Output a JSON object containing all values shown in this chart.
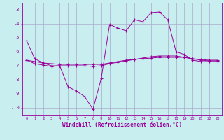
{
  "xlabel": "Windchill (Refroidissement éolien,°C)",
  "bg_color": "#c8eef0",
  "grid_color": "#aaaacc",
  "line_color": "#990099",
  "hours": [
    0,
    1,
    2,
    3,
    4,
    5,
    6,
    7,
    8,
    9,
    10,
    11,
    12,
    13,
    14,
    15,
    16,
    17,
    18,
    19,
    20,
    21,
    22,
    23
  ],
  "line1": [
    -5.2,
    -6.5,
    -6.8,
    -7.0,
    -7.0,
    -8.5,
    -8.8,
    -9.2,
    -10.1,
    -7.9,
    -4.05,
    -4.3,
    -4.5,
    -3.7,
    -3.85,
    -3.2,
    -3.15,
    -3.7,
    -6.0,
    -6.2,
    -6.6,
    -6.7,
    -6.7,
    -6.7
  ],
  "line2": [
    -6.6,
    -6.85,
    -6.95,
    -7.05,
    -7.0,
    -7.0,
    -7.0,
    -7.0,
    -7.05,
    -7.0,
    -6.85,
    -6.75,
    -6.65,
    -6.55,
    -6.45,
    -6.35,
    -6.3,
    -6.3,
    -6.3,
    -6.4,
    -6.5,
    -6.6,
    -6.65,
    -6.65
  ],
  "line3": [
    -6.6,
    -6.7,
    -6.8,
    -6.85,
    -6.9,
    -6.9,
    -6.9,
    -6.9,
    -6.9,
    -6.9,
    -6.8,
    -6.7,
    -6.6,
    -6.55,
    -6.5,
    -6.45,
    -6.4,
    -6.4,
    -6.4,
    -6.4,
    -6.5,
    -6.55,
    -6.6,
    -6.6
  ],
  "ylim": [
    -10.5,
    -2.5
  ],
  "xlim": [
    -0.5,
    23.5
  ],
  "yticks": [
    -10,
    -9,
    -8,
    -7,
    -6,
    -5,
    -4,
    -3
  ],
  "xticks": [
    0,
    1,
    2,
    3,
    4,
    5,
    6,
    7,
    8,
    9,
    10,
    11,
    12,
    13,
    14,
    15,
    16,
    17,
    18,
    19,
    20,
    21,
    22,
    23
  ],
  "xtick_labels": [
    "0",
    "1",
    "2",
    "3",
    "4",
    "5",
    "6",
    "7",
    "8",
    "9",
    "10",
    "11",
    "12",
    "13",
    "14",
    "15",
    "16",
    "17",
    "18",
    "19",
    "20",
    "21",
    "22",
    "23"
  ]
}
